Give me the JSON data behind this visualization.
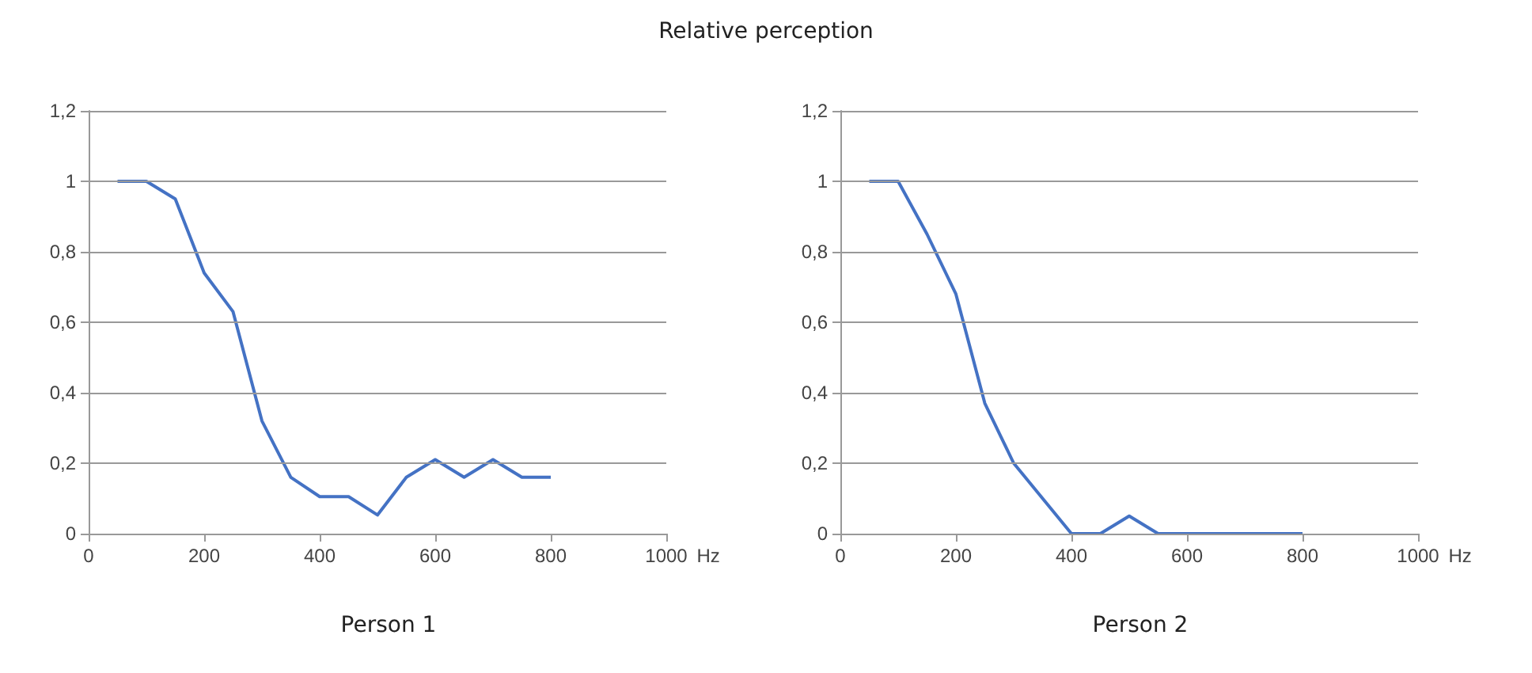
{
  "chart_data": [
    {
      "type": "line",
      "title": "Person 1",
      "annotations": [
        "Relative perception"
      ],
      "xlabel": "Hz",
      "x": [
        50,
        100,
        150,
        200,
        250,
        300,
        350,
        400,
        450,
        500,
        550,
        600,
        650,
        700,
        750,
        800
      ],
      "series": [
        {
          "color": "#4472c4",
          "values": [
            1,
            1,
            0.95,
            0.74,
            0.63,
            0.32,
            0.16,
            0.105,
            0.105,
            0.053,
            0.16,
            0.21,
            0.16,
            0.21,
            0.16,
            0.16
          ]
        }
      ],
      "xlim": [
        0,
        1000
      ],
      "xticks": [
        {
          "value": 0,
          "label": "0"
        },
        200,
        400,
        600,
        800,
        1000
      ],
      "ylim": [
        0,
        1.2
      ],
      "yticks": [
        {
          "value": 0,
          "label": "0"
        },
        {
          "value": 0.2,
          "label": "0,2"
        },
        {
          "value": 0.4,
          "label": "0,4"
        },
        {
          "value": 0.6,
          "label": "0,6"
        },
        {
          "value": 0.8,
          "label": "0,8"
        },
        1,
        {
          "value": 1.2,
          "label": "1,2"
        }
      ],
      "grid": "y",
      "marker": "none",
      "line_style": "solid"
    },
    {
      "type": "line",
      "title": "Person 2",
      "xlabel": "Hz",
      "x": [
        50,
        100,
        150,
        200,
        250,
        300,
        350,
        400,
        450,
        500,
        550,
        600,
        650,
        700,
        750,
        800
      ],
      "series": [
        {
          "color": "#4472c4",
          "values": [
            1,
            1,
            0.85,
            0.68,
            0.37,
            0.2,
            0.1,
            0,
            0,
            0.05,
            0,
            0,
            0,
            0,
            0,
            0
          ]
        }
      ],
      "xlim": [
        0,
        1000
      ],
      "xticks": [
        {
          "value": 0,
          "label": "0"
        },
        200,
        400,
        600,
        800,
        1000
      ],
      "ylim": [
        0,
        1.2
      ],
      "yticks": [
        {
          "value": 0,
          "label": "0"
        },
        {
          "value": 0.2,
          "label": "0,2"
        },
        {
          "value": 0.4,
          "label": "0,4"
        },
        {
          "value": 0.6,
          "label": "0,6"
        },
        {
          "value": 0.8,
          "label": "0,8"
        },
        1,
        {
          "value": 1.2,
          "label": "1,2"
        }
      ],
      "grid": "y",
      "marker": "none",
      "line_style": "solid"
    }
  ]
}
